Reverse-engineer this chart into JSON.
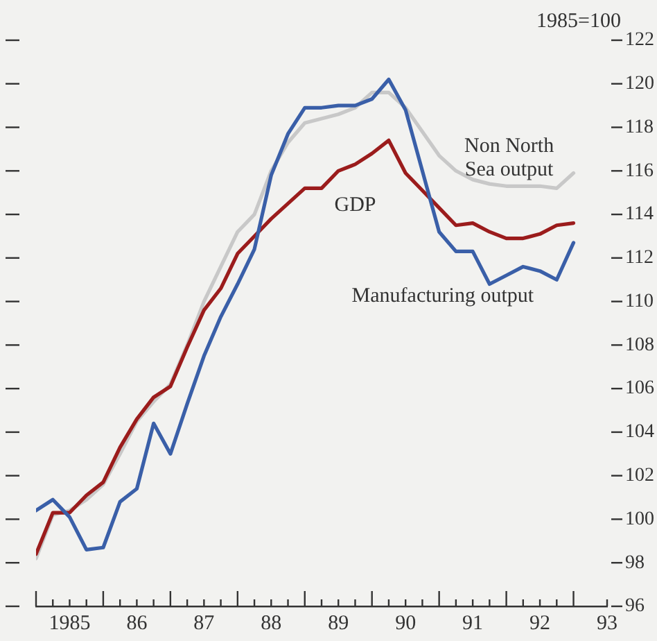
{
  "chart_data": {
    "type": "line",
    "ylabel": "1985=100",
    "legend": false,
    "grid": false,
    "marker": "none",
    "line_style": "solid",
    "x": [
      1984.5,
      1984.75,
      1985,
      1985.25,
      1985.5,
      1985.75,
      1986,
      1986.25,
      1986.5,
      1986.75,
      1987,
      1987.25,
      1987.5,
      1987.75,
      1988,
      1988.25,
      1988.5,
      1988.75,
      1989,
      1989.25,
      1989.5,
      1989.75,
      1990,
      1990.25,
      1990.5,
      1990.75,
      1991,
      1991.25,
      1991.5,
      1991.75,
      1992,
      1992.25,
      1992.5
    ],
    "xlim": [
      1984.5,
      1993
    ],
    "xticks": [
      {
        "value": 1984.5,
        "label": null
      },
      {
        "value": 1984.75,
        "label": null
      },
      1985,
      {
        "value": 1985.25,
        "label": null
      },
      {
        "value": 1985.5,
        "label": null
      },
      {
        "value": 1985.75,
        "label": null
      },
      {
        "value": 1986,
        "label": "86"
      },
      {
        "value": 1986.25,
        "label": null
      },
      {
        "value": 1986.5,
        "label": null
      },
      {
        "value": 1986.75,
        "label": null
      },
      {
        "value": 1987,
        "label": "87"
      },
      {
        "value": 1987.25,
        "label": null
      },
      {
        "value": 1987.5,
        "label": null
      },
      {
        "value": 1987.75,
        "label": null
      },
      {
        "value": 1988,
        "label": "88"
      },
      {
        "value": 1988.25,
        "label": null
      },
      {
        "value": 1988.5,
        "label": null
      },
      {
        "value": 1988.75,
        "label": null
      },
      {
        "value": 1989,
        "label": "89"
      },
      {
        "value": 1989.25,
        "label": null
      },
      {
        "value": 1989.5,
        "label": null
      },
      {
        "value": 1989.75,
        "label": null
      },
      {
        "value": 1990,
        "label": "90"
      },
      {
        "value": 1990.25,
        "label": null
      },
      {
        "value": 1990.5,
        "label": null
      },
      {
        "value": 1990.75,
        "label": null
      },
      {
        "value": 1991,
        "label": "91"
      },
      {
        "value": 1991.25,
        "label": null
      },
      {
        "value": 1991.5,
        "label": null
      },
      {
        "value": 1991.75,
        "label": null
      },
      {
        "value": 1992,
        "label": "92"
      },
      {
        "value": 1992.25,
        "label": null
      },
      {
        "value": 1992.5,
        "label": null
      },
      {
        "value": 1993,
        "label": "93"
      }
    ],
    "ylim": [
      96,
      122
    ],
    "yticks": [
      96,
      98,
      100,
      102,
      104,
      106,
      108,
      110,
      112,
      114,
      116,
      118,
      120,
      122
    ],
    "series": [
      {
        "name": "Manufacturing output",
        "color": "#3a5fa8",
        "values": [
          100.4,
          100.9,
          100.1,
          98.6,
          98.7,
          100.8,
          101.4,
          104.4,
          103.0,
          105.3,
          107.5,
          109.3,
          110.8,
          112.4,
          115.8,
          117.7,
          118.9,
          118.9,
          119.0,
          119.0,
          119.3,
          120.2,
          118.8,
          116.0,
          113.2,
          112.3,
          112.3,
          110.8,
          111.2,
          111.6,
          111.4,
          111.0,
          112.7
        ]
      },
      {
        "name": "GDP",
        "color": "#9b1c1c",
        "values": [
          98.4,
          100.3,
          100.3,
          101.1,
          101.7,
          103.3,
          104.6,
          105.6,
          106.1,
          107.9,
          109.6,
          110.6,
          112.2,
          113.0,
          113.8,
          114.5,
          115.2,
          115.2,
          116.0,
          116.3,
          116.8,
          117.4,
          115.9,
          115.1,
          114.3,
          113.5,
          113.6,
          113.2,
          112.9,
          112.9,
          113.1,
          113.5,
          113.6
        ]
      },
      {
        "name": "Non North Sea output",
        "color": "#c8c8c8",
        "values": [
          98.2,
          100.2,
          100.4,
          100.9,
          101.6,
          103.0,
          104.5,
          105.4,
          106.2,
          108.0,
          110.0,
          111.6,
          113.2,
          114.0,
          116.0,
          117.3,
          118.2,
          118.4,
          118.6,
          118.9,
          119.6,
          119.6,
          118.9,
          117.8,
          116.7,
          116.0,
          115.6,
          115.4,
          115.3,
          115.3,
          115.3,
          115.2,
          115.9
        ]
      }
    ]
  }
}
